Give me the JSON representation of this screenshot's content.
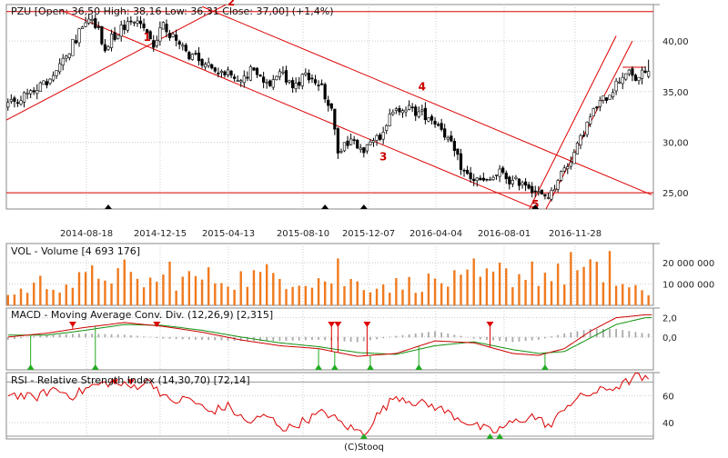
{
  "footer": "(C)Stooq",
  "x_labels": [
    "2014-08-18",
    "2014-12-15",
    "2015-04-13",
    "2015-08-10",
    "2015-12-07",
    "2016-04-04",
    "2016-08-01",
    "2016-11-28"
  ],
  "colors": {
    "frame": "#888888",
    "grid": "#cccccc",
    "up": "#ffffff",
    "down": "#000000",
    "line_red": "#dd0000",
    "volume": "#f07a1e",
    "macd_red": "#cc0000",
    "macd_green": "#109010",
    "hist": "#aaaaaa",
    "rsi": "#dd0000",
    "marker_up": "#22aa22",
    "marker_down": "#dd0000"
  },
  "chart_data": [
    {
      "type": "candlestick",
      "title": "PZU [Open: 36,50  High: 38,16  Low: 36,31  Close: 37,00] (+1,4%)",
      "ticker": "PZU",
      "last": {
        "open": 36.5,
        "high": 38.16,
        "low": 36.31,
        "close": 37.0,
        "change": "+1,4%"
      },
      "y_ticks": [
        {
          "label": "40,00",
          "value": 40
        },
        {
          "label": "35,00",
          "value": 35
        },
        {
          "label": "30,00",
          "value": 30
        },
        {
          "label": "25,00",
          "value": 25
        }
      ],
      "ylim": [
        23.4,
        43.6
      ],
      "key_points": [
        {
          "x": 0,
          "y": 33.6
        },
        {
          "x": 6,
          "y": 35.0
        },
        {
          "x": 10,
          "y": 35.5
        },
        {
          "x": 14,
          "y": 36.8
        },
        {
          "x": 18,
          "y": 38.6
        },
        {
          "x": 22,
          "y": 40.8
        },
        {
          "x": 26,
          "y": 42.3
        },
        {
          "x": 30,
          "y": 39.5
        },
        {
          "x": 34,
          "y": 41.0
        },
        {
          "x": 38,
          "y": 41.8
        },
        {
          "x": 41,
          "y": 42.0
        },
        {
          "x": 45,
          "y": 39.6
        },
        {
          "x": 48,
          "y": 41.5
        },
        {
          "x": 52,
          "y": 39.8
        },
        {
          "x": 56,
          "y": 38.6
        },
        {
          "x": 60,
          "y": 38.0
        },
        {
          "x": 64,
          "y": 37.2
        },
        {
          "x": 68,
          "y": 36.8
        },
        {
          "x": 72,
          "y": 36.0
        },
        {
          "x": 76,
          "y": 37.4
        },
        {
          "x": 80,
          "y": 35.5
        },
        {
          "x": 84,
          "y": 37.0
        },
        {
          "x": 88,
          "y": 35.2
        },
        {
          "x": 92,
          "y": 36.8
        },
        {
          "x": 96,
          "y": 36.0
        },
        {
          "x": 100,
          "y": 33.0
        },
        {
          "x": 102,
          "y": 29.2
        },
        {
          "x": 106,
          "y": 30.4
        },
        {
          "x": 110,
          "y": 29.4
        },
        {
          "x": 114,
          "y": 30.2
        },
        {
          "x": 118,
          "y": 32.4
        },
        {
          "x": 122,
          "y": 33.6
        },
        {
          "x": 126,
          "y": 33.0
        },
        {
          "x": 130,
          "y": 32.6
        },
        {
          "x": 134,
          "y": 31.5
        },
        {
          "x": 138,
          "y": 29.0
        },
        {
          "x": 141,
          "y": 27.0
        },
        {
          "x": 144,
          "y": 26.3
        },
        {
          "x": 148,
          "y": 26.0
        },
        {
          "x": 152,
          "y": 27.0
        },
        {
          "x": 156,
          "y": 26.0
        },
        {
          "x": 159,
          "y": 26.2
        },
        {
          "x": 162,
          "y": 25.5
        },
        {
          "x": 165,
          "y": 24.6
        },
        {
          "x": 168,
          "y": 24.9
        },
        {
          "x": 170,
          "y": 26.5
        },
        {
          "x": 173,
          "y": 27.8
        },
        {
          "x": 176,
          "y": 29.5
        },
        {
          "x": 179,
          "y": 31.8
        },
        {
          "x": 182,
          "y": 33.6
        },
        {
          "x": 185,
          "y": 34.5
        },
        {
          "x": 188,
          "y": 35.8
        },
        {
          "x": 191,
          "y": 37.0
        },
        {
          "x": 194,
          "y": 36.2
        },
        {
          "x": 197,
          "y": 37.0
        }
      ],
      "trendlines": [
        {
          "from": {
            "x": -4,
            "y": 31.6
          },
          "to": {
            "x": 68,
            "y": 43.7
          }
        },
        {
          "from": {
            "x": 16,
            "y": 43.1
          },
          "to": {
            "x": 164,
            "y": 23.3
          }
        },
        {
          "from": {
            "x": 60,
            "y": 43.4
          },
          "to": {
            "x": 199,
            "y": 24.8
          }
        },
        {
          "from": {
            "x": 161,
            "y": 23.3
          },
          "to": {
            "x": 188,
            "y": 40.5
          }
        },
        {
          "from": {
            "x": 166,
            "y": 23.2
          },
          "to": {
            "x": 193,
            "y": 40.0
          }
        }
      ],
      "h_lines": [
        42.9,
        25.0
      ],
      "resistance_stub": {
        "from": 190,
        "to": 197,
        "y": 37.4
      },
      "annotations": [
        {
          "label": "1",
          "x": 43,
          "y": 40.0
        },
        {
          "label": "2",
          "x": 69,
          "y": 43.5
        },
        {
          "label": "3",
          "x": 116,
          "y": 28.2
        },
        {
          "label": "4",
          "x": 128,
          "y": 35.1
        },
        {
          "label": "5",
          "x": 163,
          "y": 23.5
        }
      ],
      "triangles_x": [
        31,
        98,
        110,
        163
      ]
    },
    {
      "type": "bar",
      "title": "VOL - Volume [4 693 176]",
      "last_value": 4693176,
      "y_ticks": [
        {
          "label": "20 000 000",
          "value": 20000000
        },
        {
          "label": "10 000 000",
          "value": 10000000
        }
      ],
      "ylim": [
        0,
        29000000
      ],
      "key_points": [
        {
          "x": 0,
          "y": 4500000
        },
        {
          "x": 10,
          "y": 10500000
        },
        {
          "x": 20,
          "y": 10000000
        },
        {
          "x": 30,
          "y": 16000000
        },
        {
          "x": 40,
          "y": 11000000
        },
        {
          "x": 50,
          "y": 12000000
        },
        {
          "x": 60,
          "y": 13000000
        },
        {
          "x": 70,
          "y": 12500000
        },
        {
          "x": 80,
          "y": 14000000
        },
        {
          "x": 90,
          "y": 13000000
        },
        {
          "x": 100,
          "y": 12000000
        },
        {
          "x": 110,
          "y": 10000000
        },
        {
          "x": 120,
          "y": 9500000
        },
        {
          "x": 130,
          "y": 11000000
        },
        {
          "x": 140,
          "y": 11500000
        },
        {
          "x": 150,
          "y": 13000000
        },
        {
          "x": 160,
          "y": 15000000
        },
        {
          "x": 170,
          "y": 14000000
        },
        {
          "x": 180,
          "y": 15500000
        },
        {
          "x": 190,
          "y": 9000000
        },
        {
          "x": 197,
          "y": 5000000
        }
      ],
      "spikes": [
        {
          "x": 36,
          "y": 21500000
        },
        {
          "x": 50,
          "y": 20500000
        },
        {
          "x": 103,
          "y": 22000000
        },
        {
          "x": 145,
          "y": 22000000
        },
        {
          "x": 152,
          "y": 20000000
        },
        {
          "x": 163,
          "y": 20500000
        },
        {
          "x": 174,
          "y": 25000000
        },
        {
          "x": 183,
          "y": 20500000
        },
        {
          "x": 187,
          "y": 25500000
        }
      ]
    },
    {
      "type": "line",
      "title": "MACD - Moving Average Conv. Div. (12,26,9) [2,315]",
      "last_value": 2.315,
      "y_ticks": [
        {
          "label": "2,0",
          "value": 2
        },
        {
          "label": "0,0",
          "value": 0
        }
      ],
      "ylim": [
        -3.4,
        3.0
      ],
      "series": [
        {
          "key": "macd",
          "values": [
            {
              "x": 0,
              "y": 0.0
            },
            {
              "x": 12,
              "y": 0.4
            },
            {
              "x": 24,
              "y": 1.0
            },
            {
              "x": 36,
              "y": 1.5
            },
            {
              "x": 48,
              "y": 1.1
            },
            {
              "x": 60,
              "y": 0.5
            },
            {
              "x": 72,
              "y": -0.3
            },
            {
              "x": 84,
              "y": -0.9
            },
            {
              "x": 96,
              "y": -1.2
            },
            {
              "x": 108,
              "y": -2.0
            },
            {
              "x": 120,
              "y": -1.7
            },
            {
              "x": 132,
              "y": -0.4
            },
            {
              "x": 144,
              "y": -0.6
            },
            {
              "x": 156,
              "y": -1.7
            },
            {
              "x": 164,
              "y": -1.9
            },
            {
              "x": 172,
              "y": -1.2
            },
            {
              "x": 180,
              "y": 0.6
            },
            {
              "x": 188,
              "y": 2.0
            },
            {
              "x": 197,
              "y": 2.3
            }
          ]
        },
        {
          "key": "signal",
          "values": [
            {
              "x": 0,
              "y": 0.2
            },
            {
              "x": 12,
              "y": 0.2
            },
            {
              "x": 24,
              "y": 0.7
            },
            {
              "x": 36,
              "y": 1.3
            },
            {
              "x": 48,
              "y": 1.2
            },
            {
              "x": 60,
              "y": 0.7
            },
            {
              "x": 72,
              "y": 0.0
            },
            {
              "x": 84,
              "y": -0.6
            },
            {
              "x": 96,
              "y": -1.0
            },
            {
              "x": 108,
              "y": -1.6
            },
            {
              "x": 120,
              "y": -1.8
            },
            {
              "x": 132,
              "y": -0.9
            },
            {
              "x": 144,
              "y": -0.5
            },
            {
              "x": 156,
              "y": -1.3
            },
            {
              "x": 164,
              "y": -1.7
            },
            {
              "x": 172,
              "y": -1.5
            },
            {
              "x": 180,
              "y": -0.1
            },
            {
              "x": 188,
              "y": 1.3
            },
            {
              "x": 197,
              "y": 2.0
            }
          ]
        }
      ],
      "hist_amp": 0.45,
      "sell_signals_x": [
        20,
        46,
        100,
        102,
        111,
        149
      ],
      "buy_signals_x": [
        7,
        27,
        96,
        101,
        112,
        127,
        166
      ]
    },
    {
      "type": "line",
      "title": "RSI - Relative Strength Index (14,30,70) [72,14]",
      "last_value": 72.14,
      "y_ticks": [
        {
          "label": "60",
          "value": 60
        },
        {
          "label": "40",
          "value": 40
        }
      ],
      "ylim": [
        28,
        77
      ],
      "ref_levels": [
        70,
        30
      ],
      "key_points": [
        {
          "x": 0,
          "y": 62
        },
        {
          "x": 8,
          "y": 58
        },
        {
          "x": 14,
          "y": 65
        },
        {
          "x": 20,
          "y": 60
        },
        {
          "x": 26,
          "y": 67
        },
        {
          "x": 32,
          "y": 70
        },
        {
          "x": 38,
          "y": 66
        },
        {
          "x": 44,
          "y": 71
        },
        {
          "x": 50,
          "y": 55
        },
        {
          "x": 56,
          "y": 58
        },
        {
          "x": 62,
          "y": 48
        },
        {
          "x": 68,
          "y": 52
        },
        {
          "x": 74,
          "y": 40
        },
        {
          "x": 80,
          "y": 45
        },
        {
          "x": 86,
          "y": 35
        },
        {
          "x": 92,
          "y": 42
        },
        {
          "x": 98,
          "y": 48
        },
        {
          "x": 104,
          "y": 38
        },
        {
          "x": 110,
          "y": 32
        },
        {
          "x": 114,
          "y": 45
        },
        {
          "x": 120,
          "y": 60
        },
        {
          "x": 126,
          "y": 55
        },
        {
          "x": 132,
          "y": 52
        },
        {
          "x": 138,
          "y": 45
        },
        {
          "x": 144,
          "y": 38
        },
        {
          "x": 150,
          "y": 33
        },
        {
          "x": 156,
          "y": 40
        },
        {
          "x": 162,
          "y": 45
        },
        {
          "x": 168,
          "y": 37
        },
        {
          "x": 172,
          "y": 52
        },
        {
          "x": 178,
          "y": 60
        },
        {
          "x": 184,
          "y": 64
        },
        {
          "x": 190,
          "y": 68
        },
        {
          "x": 194,
          "y": 74
        },
        {
          "x": 197,
          "y": 72
        }
      ],
      "overbought_x": [
        33,
        38
      ],
      "oversold_x": [
        110,
        149,
        152
      ]
    }
  ]
}
